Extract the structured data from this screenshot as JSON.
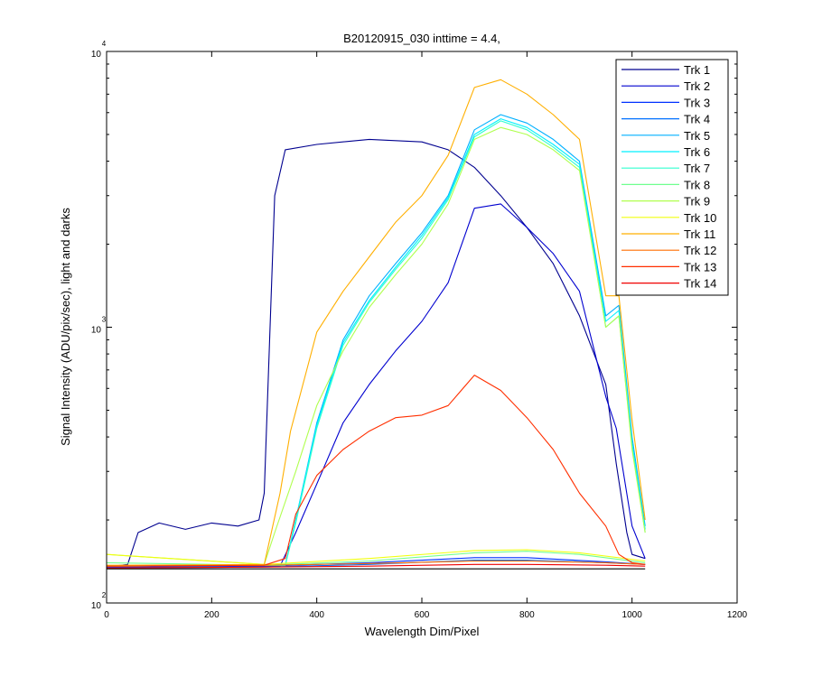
{
  "chart_data": {
    "type": "line",
    "title": "B20120915_030 inttime = 4.4,",
    "xlabel": "Wavelength Dim/Pixel",
    "ylabel": "Signal Intensity (ADU/pix/sec), light and darks",
    "xlim": [
      0,
      1200
    ],
    "ylim": [
      100,
      10000
    ],
    "yscale": "log",
    "xticks": [
      0,
      200,
      400,
      600,
      800,
      1000,
      1200
    ],
    "xtick_labels": [
      "0",
      "200",
      "400",
      "600",
      "800",
      "1000",
      "1200"
    ],
    "yticks": [
      100,
      1000,
      10000
    ],
    "ytick_labels": [
      {
        "base": "10",
        "exp": "2"
      },
      {
        "base": "10",
        "exp": "3"
      },
      {
        "base": "10",
        "exp": "4"
      }
    ],
    "legend_location": "top-right",
    "series": [
      {
        "name": "Trk 1",
        "color": "#00008F",
        "points": [
          [
            0,
            135
          ],
          [
            40,
            138
          ],
          [
            60,
            180
          ],
          [
            100,
            195
          ],
          [
            150,
            185
          ],
          [
            200,
            195
          ],
          [
            250,
            190
          ],
          [
            290,
            200
          ],
          [
            300,
            250
          ],
          [
            320,
            3000
          ],
          [
            340,
            4400
          ],
          [
            400,
            4600
          ],
          [
            500,
            4800
          ],
          [
            600,
            4700
          ],
          [
            650,
            4400
          ],
          [
            700,
            3800
          ],
          [
            750,
            3000
          ],
          [
            800,
            2300
          ],
          [
            850,
            1700
          ],
          [
            900,
            1100
          ],
          [
            950,
            620
          ],
          [
            970,
            320
          ],
          [
            990,
            180
          ],
          [
            1000,
            150
          ],
          [
            1025,
            145
          ]
        ]
      },
      {
        "name": "Trk 2",
        "color": "#0000CF",
        "points": [
          [
            0,
            135
          ],
          [
            330,
            136
          ],
          [
            360,
            180
          ],
          [
            400,
            270
          ],
          [
            450,
            450
          ],
          [
            500,
            620
          ],
          [
            550,
            820
          ],
          [
            600,
            1050
          ],
          [
            650,
            1450
          ],
          [
            700,
            2700
          ],
          [
            750,
            2800
          ],
          [
            800,
            2300
          ],
          [
            850,
            1850
          ],
          [
            900,
            1350
          ],
          [
            950,
            560
          ],
          [
            970,
            430
          ],
          [
            1000,
            190
          ],
          [
            1025,
            145
          ]
        ]
      },
      {
        "name": "Trk 3",
        "color": "#0030FF",
        "points": [
          [
            0,
            135
          ],
          [
            300,
            136
          ],
          [
            500,
            140
          ],
          [
            700,
            146
          ],
          [
            800,
            146
          ],
          [
            950,
            141
          ],
          [
            1025,
            138
          ]
        ]
      },
      {
        "name": "Trk 4",
        "color": "#0070FF",
        "points": [
          [
            0,
            134
          ],
          [
            300,
            135
          ],
          [
            500,
            138
          ],
          [
            700,
            143
          ],
          [
            800,
            143
          ],
          [
            950,
            140
          ],
          [
            1025,
            138
          ]
        ]
      },
      {
        "name": "Trk 5",
        "color": "#00B0FF",
        "points": [
          [
            0,
            136
          ],
          [
            340,
            137
          ],
          [
            360,
            200
          ],
          [
            400,
            450
          ],
          [
            450,
            900
          ],
          [
            500,
            1300
          ],
          [
            550,
            1700
          ],
          [
            600,
            2200
          ],
          [
            650,
            3000
          ],
          [
            700,
            5200
          ],
          [
            750,
            5900
          ],
          [
            800,
            5500
          ],
          [
            850,
            4800
          ],
          [
            900,
            4000
          ],
          [
            950,
            1100
          ],
          [
            975,
            1200
          ],
          [
            1000,
            400
          ],
          [
            1025,
            190
          ]
        ]
      },
      {
        "name": "Trk 6",
        "color": "#00F0FF",
        "points": [
          [
            0,
            136
          ],
          [
            340,
            137
          ],
          [
            360,
            200
          ],
          [
            400,
            440
          ],
          [
            450,
            880
          ],
          [
            500,
            1250
          ],
          [
            550,
            1650
          ],
          [
            600,
            2150
          ],
          [
            650,
            2950
          ],
          [
            700,
            5000
          ],
          [
            750,
            5700
          ],
          [
            800,
            5300
          ],
          [
            850,
            4600
          ],
          [
            900,
            3900
          ],
          [
            950,
            1050
          ],
          [
            975,
            1150
          ],
          [
            1000,
            380
          ],
          [
            1025,
            185
          ]
        ]
      },
      {
        "name": "Trk 7",
        "color": "#30FFCF",
        "points": [
          [
            0,
            136
          ],
          [
            340,
            137
          ],
          [
            360,
            195
          ],
          [
            400,
            430
          ],
          [
            450,
            860
          ],
          [
            500,
            1230
          ],
          [
            550,
            1620
          ],
          [
            600,
            2100
          ],
          [
            650,
            2900
          ],
          [
            700,
            4900
          ],
          [
            750,
            5600
          ],
          [
            800,
            5200
          ],
          [
            850,
            4500
          ],
          [
            900,
            3800
          ],
          [
            950,
            1000
          ],
          [
            975,
            1100
          ],
          [
            1000,
            370
          ],
          [
            1025,
            180
          ]
        ]
      },
      {
        "name": "Trk 8",
        "color": "#70FF8F",
        "points": [
          [
            0,
            140
          ],
          [
            300,
            137
          ],
          [
            500,
            142
          ],
          [
            700,
            152
          ],
          [
            800,
            154
          ],
          [
            900,
            150
          ],
          [
            1025,
            140
          ]
        ]
      },
      {
        "name": "Trk 9",
        "color": "#B0FF4F",
        "points": [
          [
            0,
            150
          ],
          [
            300,
            138
          ],
          [
            320,
            180
          ],
          [
            360,
            300
          ],
          [
            400,
            520
          ],
          [
            450,
            820
          ],
          [
            500,
            1180
          ],
          [
            550,
            1550
          ],
          [
            600,
            2000
          ],
          [
            650,
            2800
          ],
          [
            700,
            4800
          ],
          [
            750,
            5300
          ],
          [
            800,
            5000
          ],
          [
            850,
            4400
          ],
          [
            900,
            3700
          ],
          [
            950,
            1000
          ],
          [
            975,
            1100
          ],
          [
            1000,
            360
          ],
          [
            1025,
            180
          ]
        ]
      },
      {
        "name": "Trk 10",
        "color": "#F0FF0F",
        "points": [
          [
            0,
            150
          ],
          [
            300,
            138
          ],
          [
            500,
            145
          ],
          [
            700,
            155
          ],
          [
            800,
            156
          ],
          [
            900,
            152
          ],
          [
            1025,
            142
          ]
        ]
      },
      {
        "name": "Trk 11",
        "color": "#FFAF00",
        "points": [
          [
            0,
            137
          ],
          [
            300,
            138
          ],
          [
            330,
            250
          ],
          [
            350,
            420
          ],
          [
            400,
            960
          ],
          [
            450,
            1350
          ],
          [
            500,
            1800
          ],
          [
            550,
            2400
          ],
          [
            600,
            3000
          ],
          [
            650,
            4200
          ],
          [
            700,
            7400
          ],
          [
            750,
            7900
          ],
          [
            800,
            7000
          ],
          [
            850,
            5900
          ],
          [
            900,
            4800
          ],
          [
            950,
            1300
          ],
          [
            975,
            1300
          ],
          [
            1000,
            460
          ],
          [
            1025,
            200
          ]
        ]
      },
      {
        "name": "Trk 12",
        "color": "#FF6F00",
        "points": [
          [
            0,
            136
          ],
          [
            300,
            137
          ],
          [
            500,
            139
          ],
          [
            700,
            142
          ],
          [
            800,
            142
          ],
          [
            950,
            140
          ],
          [
            1025,
            138
          ]
        ]
      },
      {
        "name": "Trk 13",
        "color": "#FF2F00",
        "points": [
          [
            0,
            136
          ],
          [
            300,
            137
          ],
          [
            340,
            145
          ],
          [
            360,
            210
          ],
          [
            400,
            290
          ],
          [
            450,
            360
          ],
          [
            500,
            420
          ],
          [
            550,
            470
          ],
          [
            600,
            480
          ],
          [
            650,
            520
          ],
          [
            700,
            670
          ],
          [
            750,
            590
          ],
          [
            800,
            470
          ],
          [
            850,
            360
          ],
          [
            900,
            250
          ],
          [
            950,
            190
          ],
          [
            975,
            150
          ],
          [
            1000,
            140
          ],
          [
            1025,
            138
          ]
        ]
      },
      {
        "name": "Trk 14",
        "color": "#EF0000",
        "points": [
          [
            0,
            134
          ],
          [
            300,
            135
          ],
          [
            500,
            136
          ],
          [
            700,
            138
          ],
          [
            800,
            138
          ],
          [
            950,
            137
          ],
          [
            1025,
            136
          ]
        ]
      },
      {
        "name": "",
        "color": "#000000",
        "points": [
          [
            0,
            133
          ],
          [
            1025,
            133
          ]
        ]
      }
    ]
  }
}
